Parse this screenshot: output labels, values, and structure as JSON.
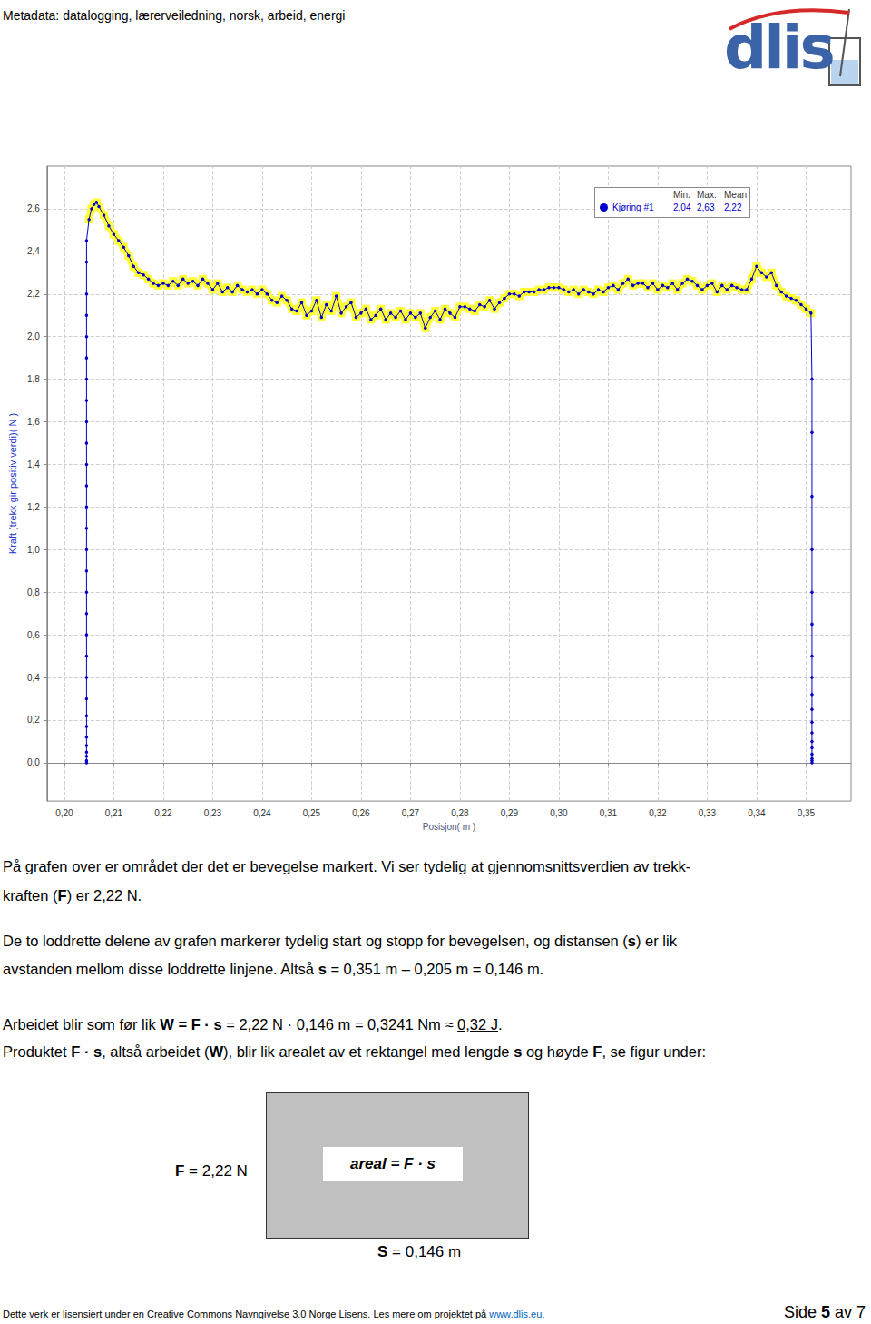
{
  "header": {
    "metadata": "Metadata: datalogging, lærerveiledning, norsk, arbeid, energi",
    "logo": "dlis"
  },
  "chart_data": {
    "type": "line",
    "y_label": "Kraft (trekk gir positiv verdi)( N )",
    "x_label": "Posisjon( m )",
    "xlim": [
      0.1965,
      0.3591
    ],
    "xticks": [
      {
        "value": 0.2,
        "label": "0,20"
      },
      {
        "value": 0.21,
        "label": "0,21"
      },
      {
        "value": 0.22,
        "label": "0,22"
      },
      {
        "value": 0.23,
        "label": "0,23"
      },
      {
        "value": 0.24,
        "label": "0,24"
      },
      {
        "value": 0.25,
        "label": "0,25"
      },
      {
        "value": 0.26,
        "label": "0,26"
      },
      {
        "value": 0.27,
        "label": "0,27"
      },
      {
        "value": 0.28,
        "label": "0,28"
      },
      {
        "value": 0.29,
        "label": "0,29"
      },
      {
        "value": 0.3,
        "label": "0,30"
      },
      {
        "value": 0.31,
        "label": "0,31"
      },
      {
        "value": 0.32,
        "label": "0,32"
      },
      {
        "value": 0.33,
        "label": "0,33"
      },
      {
        "value": 0.34,
        "label": "0,34"
      },
      {
        "value": 0.35,
        "label": "0,35"
      }
    ],
    "ylim": [
      -0.18,
      2.8
    ],
    "yticks": [
      {
        "value": 0.0,
        "label": "0,0"
      },
      {
        "value": 0.2,
        "label": "0,2"
      },
      {
        "value": 0.4,
        "label": "0,4"
      },
      {
        "value": 0.6,
        "label": "0,6"
      },
      {
        "value": 0.8,
        "label": "0,8"
      },
      {
        "value": 1.0,
        "label": "1,0"
      },
      {
        "value": 1.2,
        "label": "1,2"
      },
      {
        "value": 1.4,
        "label": "1,4"
      },
      {
        "value": 1.6,
        "label": "1,6"
      },
      {
        "value": 1.8,
        "label": "1,8"
      },
      {
        "value": 2.0,
        "label": "2,0"
      },
      {
        "value": 2.2,
        "label": "2,2"
      },
      {
        "value": 2.4,
        "label": "2,4"
      },
      {
        "value": 2.6,
        "label": "2,6"
      }
    ],
    "grid": true,
    "legend": "top-right",
    "series": [
      {
        "name": "Kjøring #1",
        "color": "#0000cc",
        "marker": "circle",
        "x": [
          0.2045,
          0.2045,
          0.2045,
          0.2045,
          0.2045,
          0.2045,
          0.2045,
          0.2045,
          0.2045,
          0.2045,
          0.2045,
          0.2045,
          0.2045,
          0.2045,
          0.2045,
          0.2045,
          0.2045,
          0.2045,
          0.2045,
          0.2045,
          0.2045,
          0.2045,
          0.2045,
          0.2045,
          0.2045,
          0.2045,
          0.2045,
          0.2045,
          0.2045,
          0.2045,
          0.205,
          0.2055,
          0.206,
          0.2065,
          0.207,
          0.208,
          0.209,
          0.21,
          0.211,
          0.212,
          0.213,
          0.214,
          0.215,
          0.216,
          0.217,
          0.218,
          0.219,
          0.22,
          0.221,
          0.222,
          0.223,
          0.224,
          0.225,
          0.226,
          0.227,
          0.228,
          0.229,
          0.23,
          0.231,
          0.232,
          0.233,
          0.234,
          0.235,
          0.236,
          0.237,
          0.238,
          0.239,
          0.24,
          0.241,
          0.242,
          0.243,
          0.244,
          0.245,
          0.246,
          0.247,
          0.248,
          0.249,
          0.25,
          0.251,
          0.252,
          0.253,
          0.254,
          0.255,
          0.256,
          0.257,
          0.258,
          0.259,
          0.26,
          0.261,
          0.262,
          0.263,
          0.264,
          0.265,
          0.266,
          0.267,
          0.268,
          0.269,
          0.27,
          0.271,
          0.272,
          0.273,
          0.274,
          0.275,
          0.276,
          0.277,
          0.278,
          0.279,
          0.28,
          0.281,
          0.282,
          0.283,
          0.284,
          0.285,
          0.286,
          0.287,
          0.288,
          0.289,
          0.29,
          0.291,
          0.292,
          0.293,
          0.294,
          0.295,
          0.296,
          0.297,
          0.298,
          0.299,
          0.3,
          0.301,
          0.302,
          0.303,
          0.304,
          0.305,
          0.306,
          0.307,
          0.308,
          0.309,
          0.31,
          0.311,
          0.312,
          0.313,
          0.314,
          0.315,
          0.316,
          0.317,
          0.318,
          0.319,
          0.32,
          0.321,
          0.322,
          0.323,
          0.324,
          0.325,
          0.326,
          0.327,
          0.328,
          0.329,
          0.33,
          0.331,
          0.332,
          0.333,
          0.334,
          0.335,
          0.336,
          0.337,
          0.338,
          0.339,
          0.34,
          0.341,
          0.342,
          0.343,
          0.344,
          0.345,
          0.346,
          0.347,
          0.348,
          0.349,
          0.35,
          0.351,
          0.3512,
          0.3512,
          0.3512,
          0.3512,
          0.3512,
          0.3512,
          0.3512,
          0.3512,
          0.3512,
          0.3512,
          0.3512,
          0.3512,
          0.3512,
          0.3512,
          0.3512,
          0.3512,
          0.3512,
          0.3512
        ],
        "values": [
          0,
          0.01,
          0.03,
          0.05,
          0.08,
          0.12,
          0.17,
          0.22,
          0.3,
          0.4,
          0.5,
          0.6,
          0.7,
          0.8,
          0.9,
          1.0,
          1.1,
          1.2,
          1.3,
          1.4,
          1.5,
          1.6,
          1.7,
          1.8,
          1.9,
          2.0,
          2.1,
          2.2,
          2.35,
          2.45,
          2.55,
          2.6,
          2.62,
          2.63,
          2.61,
          2.57,
          2.52,
          2.48,
          2.45,
          2.42,
          2.38,
          2.33,
          2.3,
          2.29,
          2.27,
          2.25,
          2.24,
          2.25,
          2.24,
          2.26,
          2.24,
          2.27,
          2.25,
          2.26,
          2.24,
          2.27,
          2.25,
          2.22,
          2.25,
          2.21,
          2.23,
          2.21,
          2.24,
          2.22,
          2.21,
          2.22,
          2.2,
          2.22,
          2.2,
          2.17,
          2.16,
          2.19,
          2.17,
          2.13,
          2.12,
          2.16,
          2.1,
          2.12,
          2.17,
          2.09,
          2.15,
          2.12,
          2.19,
          2.11,
          2.14,
          2.16,
          2.09,
          2.11,
          2.13,
          2.08,
          2.1,
          2.13,
          2.08,
          2.11,
          2.09,
          2.12,
          2.08,
          2.11,
          2.09,
          2.11,
          2.04,
          2.09,
          2.12,
          2.08,
          2.13,
          2.11,
          2.09,
          2.14,
          2.14,
          2.13,
          2.12,
          2.15,
          2.14,
          2.17,
          2.13,
          2.16,
          2.18,
          2.2,
          2.2,
          2.19,
          2.21,
          2.21,
          2.21,
          2.22,
          2.22,
          2.23,
          2.23,
          2.23,
          2.22,
          2.21,
          2.22,
          2.2,
          2.22,
          2.21,
          2.2,
          2.22,
          2.21,
          2.23,
          2.24,
          2.22,
          2.25,
          2.27,
          2.24,
          2.25,
          2.25,
          2.23,
          2.25,
          2.22,
          2.24,
          2.23,
          2.25,
          2.22,
          2.25,
          2.27,
          2.26,
          2.24,
          2.22,
          2.24,
          2.25,
          2.21,
          2.24,
          2.22,
          2.24,
          2.23,
          2.22,
          2.22,
          2.27,
          2.33,
          2.3,
          2.28,
          2.3,
          2.24,
          2.21,
          2.19,
          2.18,
          2.17,
          2.15,
          2.13,
          2.11,
          1.8,
          1.55,
          1.25,
          1.0,
          0.8,
          0.65,
          0.5,
          0.4,
          0.32,
          0.25,
          0.19,
          0.14,
          0.1,
          0.07,
          0.04,
          0.02,
          0.01,
          0
        ]
      }
    ],
    "highlight": {
      "color": "#ffff33",
      "x": [
        0.205,
        0.351
      ]
    },
    "stats": {
      "columns": [
        "Min.",
        "Max.",
        "Mean"
      ],
      "values": [
        {
          "value": 2.04,
          "label": "2,04"
        },
        {
          "value": 2.63,
          "label": "2,63"
        },
        {
          "value": 2.22,
          "label": "2,22"
        }
      ]
    }
  },
  "text": {
    "paragraphs": [
      [
        [
          {
            "text": "På grafen over er området der det er bevegelse markert.  Vi ser tydelig at gjennomsnittsverdien av trekk-"
          }
        ],
        [
          {
            "text": "kraften ("
          },
          {
            "text": "F",
            "bold": true
          },
          {
            "text": ") er 2,22 N."
          }
        ]
      ],
      [
        [
          {
            "text": "De to loddrette delene av grafen markerer tydelig start og stopp for bevegelsen, og distansen ("
          },
          {
            "text": "s",
            "bold": true
          },
          {
            "text": ") er lik"
          }
        ],
        [
          {
            "text": "avstanden mellom disse loddrette linjene.  Altså "
          },
          {
            "text": "s",
            "bold": true
          },
          {
            "text": " = 0,351 m – 0,205 m = 0,146 m."
          }
        ]
      ],
      [
        [
          {
            "text": "Arbeidet blir som før lik "
          },
          {
            "text": "W = F · s",
            "bold": true
          },
          {
            "text": " = 2,22 N · 0,146 m = 0,3241 Nm ≈ "
          },
          {
            "text": "0,32 J",
            "underline": true
          },
          {
            "text": "."
          }
        ],
        [
          {
            "text": "Produktet "
          },
          {
            "text": "F · s",
            "bold": true
          },
          {
            "text": ", altså arbeidet ("
          },
          {
            "text": "W",
            "bold": true
          },
          {
            "text": "), blir lik arealet av et rektangel med lengde "
          },
          {
            "text": "s",
            "bold": true
          },
          {
            "text": " og høyde "
          },
          {
            "text": "F",
            "bold": true
          },
          {
            "text": ", se figur under:"
          }
        ]
      ]
    ]
  },
  "figure": {
    "height_label": [
      {
        "text": "F",
        "bold": true
      },
      {
        "text": " = 2,22 N"
      }
    ],
    "area_label": [
      {
        "text": "areal = F · s",
        "bold": true,
        "italic": true
      }
    ],
    "length_label": [
      {
        "text": "S",
        "bold": true
      },
      {
        "text": " = 0,146 m"
      }
    ]
  },
  "footer": {
    "license": "Dette verk er lisensiert under en Creative Commons Navngivelse 3.0 Norge Lisens. Les mere om projektet på ",
    "link": "www.dlis.eu",
    "after_link": ".",
    "page": [
      {
        "text": "Side "
      },
      {
        "text": "5",
        "bold": true
      },
      {
        "text": " av 7"
      }
    ]
  }
}
